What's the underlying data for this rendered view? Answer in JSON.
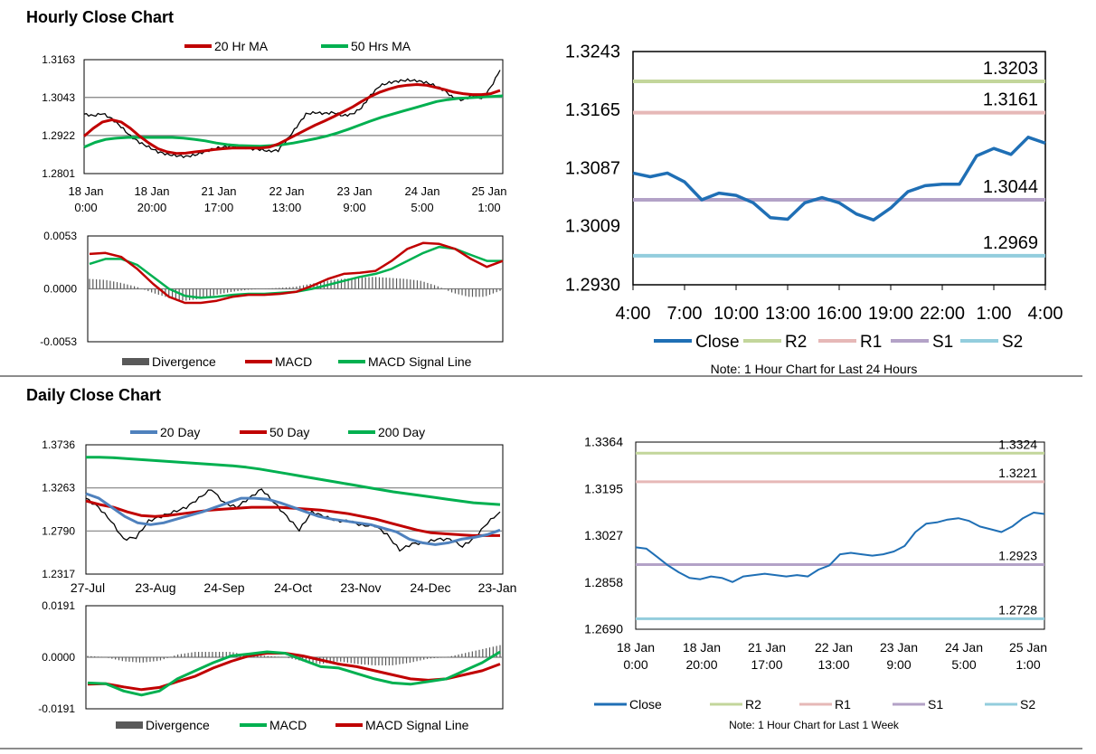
{
  "sections": {
    "hourly_title": "Hourly Close Chart",
    "daily_title": "Daily Close Chart"
  },
  "colors": {
    "ma20hr": "#c00000",
    "ma50hr": "#00b050",
    "d20": "#4f81bd",
    "d50": "#c00000",
    "d200": "#00b050",
    "close": "#1f6fb5",
    "r2": "#c3d69b",
    "r1": "#e6b8b7",
    "s1": "#b3a2c7",
    "s2": "#93cddd",
    "divergence": "#595959",
    "macd_hourly": "#c00000",
    "signal_hourly": "#00b050",
    "macd_daily": "#00b050",
    "signal_daily": "#c00000",
    "price": "#000000"
  },
  "chart_data": [
    {
      "id": "hourly_price",
      "type": "line",
      "title": "Hourly Close Chart",
      "legend": [
        "20 Hr MA",
        "50 Hrs MA"
      ],
      "y_ticks": [
        "1.3163",
        "1.3043",
        "1.2922",
        "1.2801"
      ],
      "ylim": [
        1.2801,
        1.3163
      ],
      "x_ticks": [
        [
          "18 Jan",
          "0:00"
        ],
        [
          "18 Jan",
          "20:00"
        ],
        [
          "21 Jan",
          "17:00"
        ],
        [
          "22 Jan",
          "13:00"
        ],
        [
          "23 Jan",
          "9:00"
        ],
        [
          "24 Jan",
          "5:00"
        ],
        [
          "25 Jan",
          "1:00"
        ]
      ],
      "series": [
        {
          "name": "Price",
          "values": [
            1.299,
            1.2985,
            1.2992,
            1.2975,
            1.295,
            1.292,
            1.29,
            1.2885,
            1.287,
            1.2862,
            1.2858,
            1.2855,
            1.286,
            1.287,
            1.288,
            1.2885,
            1.2888,
            1.2886,
            1.288,
            1.2878,
            1.2872,
            1.2875,
            1.291,
            1.295,
            1.299,
            1.2995,
            1.2992,
            1.2995,
            1.2985,
            1.299,
            1.301,
            1.305,
            1.308,
            1.309,
            1.3095,
            1.3098,
            1.3096,
            1.309,
            1.308,
            1.3065,
            1.304,
            1.3035,
            1.305,
            1.304,
            1.3075,
            1.313
          ]
        },
        {
          "name": "20 Hr MA",
          "values": [
            1.292,
            1.2945,
            1.2965,
            1.2972,
            1.2965,
            1.2945,
            1.292,
            1.2898,
            1.288,
            1.287,
            1.2865,
            1.2866,
            1.287,
            1.2873,
            1.2877,
            1.288,
            1.2882,
            1.2882,
            1.2882,
            1.2882,
            1.2885,
            1.2895,
            1.291,
            1.2925,
            1.294,
            1.2955,
            1.2968,
            1.2982,
            1.2997,
            1.3012,
            1.303,
            1.3046,
            1.306,
            1.307,
            1.3078,
            1.3082,
            1.3084,
            1.3082,
            1.3075,
            1.3068,
            1.306,
            1.3055,
            1.3052,
            1.3052,
            1.3055,
            1.3065
          ]
        },
        {
          "name": "50 Hrs MA",
          "values": [
            1.2885,
            1.29,
            1.291,
            1.2914,
            1.2916,
            1.2916,
            1.2916,
            1.2916,
            1.2916,
            1.2914,
            1.291,
            1.2905,
            1.2898,
            1.2893,
            1.289,
            1.2889,
            1.2888,
            1.289,
            1.2893,
            1.2898,
            1.2905,
            1.2912,
            1.292,
            1.293,
            1.2942,
            1.2955,
            1.2968,
            1.298,
            1.299,
            1.3,
            1.301,
            1.302,
            1.303,
            1.3036,
            1.304,
            1.3042,
            1.3044,
            1.3046,
            1.3048
          ]
        }
      ]
    },
    {
      "id": "hourly_macd",
      "type": "line",
      "y_ticks": [
        "0.0053",
        "0.0000",
        "-0.0053"
      ],
      "ylim": [
        -0.0053,
        0.0053
      ],
      "legend": [
        "Divergence",
        "MACD",
        "MACD Signal Line"
      ],
      "series": [
        {
          "name": "MACD",
          "values": [
            0.0035,
            0.0036,
            0.0032,
            0.002,
            0.0005,
            -0.0008,
            -0.0014,
            -0.0014,
            -0.0012,
            -0.0008,
            -0.0006,
            -0.0006,
            -0.0005,
            -0.0003,
            0.0003,
            0.001,
            0.0015,
            0.0016,
            0.0018,
            0.0028,
            0.004,
            0.0046,
            0.0045,
            0.004,
            0.003,
            0.0022,
            0.0028
          ]
        },
        {
          "name": "MACD Signal Line",
          "values": [
            0.0025,
            0.003,
            0.003,
            0.0024,
            0.0012,
            0.0,
            -0.0007,
            -0.0009,
            -0.0008,
            -0.0006,
            -0.0005,
            -0.0005,
            -0.0004,
            -0.0003,
            0.0,
            0.0004,
            0.0008,
            0.0012,
            0.0015,
            0.002,
            0.0028,
            0.0036,
            0.0042,
            0.004,
            0.0034,
            0.0028,
            0.0028
          ]
        },
        {
          "name": "Divergence",
          "values": [
            0.001,
            0.0009,
            0.0006,
            0.0002,
            -0.0004,
            -0.0009,
            -0.0012,
            -0.001,
            -0.0006,
            -0.0003,
            -0.0001,
            0.0,
            0.0001,
            0.0002,
            0.0005,
            0.0008,
            0.001,
            0.0011,
            0.0012,
            0.0011,
            0.001,
            0.0008,
            0.0003,
            -0.0004,
            -0.0008,
            -0.0008,
            -0.0002
          ]
        }
      ]
    },
    {
      "id": "hourly_24h",
      "type": "line",
      "note": "Note: 1 Hour Chart for Last 24 Hours",
      "y_ticks": [
        "1.3243",
        "1.3165",
        "1.3087",
        "1.3009",
        "1.2930"
      ],
      "ylim": [
        1.293,
        1.3243
      ],
      "x_ticks": [
        "4:00",
        "7:00",
        "10:00",
        "13:00",
        "16:00",
        "19:00",
        "22:00",
        "1:00",
        "4:00"
      ],
      "legend": [
        "Close",
        "R2",
        "R1",
        "S1",
        "S2"
      ],
      "levels": [
        {
          "name": "R2",
          "value": 1.3203,
          "label": "1.3203"
        },
        {
          "name": "R1",
          "value": 1.3161,
          "label": "1.3161"
        },
        {
          "name": "S1",
          "value": 1.3044,
          "label": "1.3044"
        },
        {
          "name": "S2",
          "value": 1.2969,
          "label": "1.2969"
        }
      ],
      "series": [
        {
          "name": "Close",
          "values": [
            1.308,
            1.3075,
            1.308,
            1.3068,
            1.3044,
            1.3053,
            1.305,
            1.304,
            1.302,
            1.3018,
            1.304,
            1.3047,
            1.304,
            1.3025,
            1.3017,
            1.3033,
            1.3055,
            1.3063,
            1.3065,
            1.3065,
            1.3103,
            1.3113,
            1.3105,
            1.3128,
            1.312
          ]
        }
      ]
    },
    {
      "id": "daily_price",
      "type": "line",
      "title": "Daily Close Chart",
      "legend": [
        "20 Day",
        "50 Day",
        "200 Day"
      ],
      "y_ticks": [
        "1.3736",
        "1.3263",
        "1.2790",
        "1.2317"
      ],
      "ylim": [
        1.2317,
        1.3736
      ],
      "x_ticks": [
        "27-Jul",
        "23-Aug",
        "24-Sep",
        "24-Oct",
        "23-Nov",
        "24-Dec",
        "23-Jan"
      ],
      "series": [
        {
          "name": "Price",
          "values": [
            1.315,
            1.305,
            1.29,
            1.27,
            1.272,
            1.29,
            1.295,
            1.3,
            1.305,
            1.315,
            1.325,
            1.31,
            1.305,
            1.315,
            1.325,
            1.31,
            1.295,
            1.28,
            1.3,
            1.295,
            1.29,
            1.29,
            1.285,
            1.285,
            1.275,
            1.258,
            1.265,
            1.266,
            1.27,
            1.27,
            1.262,
            1.272,
            1.288,
            1.3
          ]
        },
        {
          "name": "20 Day",
          "values": [
            1.32,
            1.315,
            1.305,
            1.295,
            1.288,
            1.286,
            1.288,
            1.292,
            1.296,
            1.3,
            1.305,
            1.31,
            1.315,
            1.315,
            1.314,
            1.31,
            1.305,
            1.3,
            1.295,
            1.292,
            1.29,
            1.288,
            1.286,
            1.282,
            1.278,
            1.27,
            1.266,
            1.264,
            1.266,
            1.27,
            1.272,
            1.275,
            1.28
          ]
        },
        {
          "name": "50 Day",
          "values": [
            1.312,
            1.308,
            1.305,
            1.3,
            1.296,
            1.295,
            1.296,
            1.298,
            1.3,
            1.302,
            1.303,
            1.304,
            1.305,
            1.305,
            1.305,
            1.304,
            1.303,
            1.302,
            1.3,
            1.298,
            1.295,
            1.292,
            1.288,
            1.284,
            1.28,
            1.277,
            1.276,
            1.275,
            1.274,
            1.274,
            1.274
          ]
        },
        {
          "name": "200 Day",
          "values": [
            1.36,
            1.36,
            1.3595,
            1.3585,
            1.3575,
            1.3565,
            1.3555,
            1.3545,
            1.3535,
            1.3525,
            1.3515,
            1.3505,
            1.349,
            1.347,
            1.3445,
            1.342,
            1.3395,
            1.337,
            1.3345,
            1.332,
            1.3295,
            1.327,
            1.3245,
            1.322,
            1.32,
            1.318,
            1.316,
            1.314,
            1.312,
            1.31,
            1.309,
            1.308
          ]
        }
      ]
    },
    {
      "id": "daily_macd",
      "type": "line",
      "y_ticks": [
        "0.0191",
        "0.0000",
        "-0.0191"
      ],
      "ylim": [
        -0.0191,
        0.0191
      ],
      "legend": [
        "Divergence",
        "MACD",
        "MACD Signal Line"
      ],
      "series": [
        {
          "name": "MACD",
          "values": [
            -0.0095,
            -0.0098,
            -0.0125,
            -0.014,
            -0.0125,
            -0.008,
            -0.005,
            -0.002,
            0.0005,
            0.0012,
            0.002,
            0.0015,
            -0.001,
            -0.0035,
            -0.004,
            -0.006,
            -0.008,
            -0.0095,
            -0.01,
            -0.009,
            -0.008,
            -0.005,
            -0.002,
            0.002
          ]
        },
        {
          "name": "MACD Signal Line",
          "values": [
            -0.01,
            -0.0098,
            -0.011,
            -0.012,
            -0.0112,
            -0.009,
            -0.007,
            -0.004,
            -0.0015,
            0.0005,
            0.0015,
            0.0015,
            0.0005,
            -0.001,
            -0.0025,
            -0.0035,
            -0.005,
            -0.0065,
            -0.008,
            -0.0085,
            -0.008,
            -0.0065,
            -0.005,
            -0.0025
          ]
        },
        {
          "name": "Divergence",
          "values": [
            0.0005,
            0.0,
            -0.0015,
            -0.002,
            -0.0013,
            0.001,
            0.002,
            0.002,
            0.002,
            0.0007,
            0.0005,
            0.0,
            -0.0015,
            -0.0025,
            -0.0015,
            -0.0025,
            -0.003,
            -0.003,
            -0.002,
            -0.0005,
            0.0,
            0.0015,
            0.003,
            0.0045
          ]
        }
      ]
    },
    {
      "id": "hourly_week",
      "type": "line",
      "note": "Note: 1 Hour Chart for Last 1 Week",
      "y_ticks": [
        "1.3364",
        "1.3195",
        "1.3027",
        "1.2858",
        "1.2690"
      ],
      "ylim": [
        1.269,
        1.3364
      ],
      "x_ticks": [
        [
          "18 Jan",
          "0:00"
        ],
        [
          "18 Jan",
          "20:00"
        ],
        [
          "21 Jan",
          "17:00"
        ],
        [
          "22 Jan",
          "13:00"
        ],
        [
          "23 Jan",
          "9:00"
        ],
        [
          "24 Jan",
          "5:00"
        ],
        [
          "25 Jan",
          "1:00"
        ]
      ],
      "legend": [
        "Close",
        "R2",
        "R1",
        "S1",
        "S2"
      ],
      "levels": [
        {
          "name": "R2",
          "value": 1.3324,
          "label": "1.3324"
        },
        {
          "name": "R1",
          "value": 1.3221,
          "label": "1.3221"
        },
        {
          "name": "S1",
          "value": 1.2923,
          "label": "1.2923"
        },
        {
          "name": "S2",
          "value": 1.2728,
          "label": "1.2728"
        }
      ],
      "series": [
        {
          "name": "Close",
          "values": [
            1.2985,
            1.298,
            1.295,
            1.292,
            1.2895,
            1.2875,
            1.287,
            1.288,
            1.2875,
            1.286,
            1.288,
            1.2885,
            1.289,
            1.2885,
            1.288,
            1.2885,
            1.288,
            1.2905,
            1.292,
            1.296,
            1.2965,
            1.296,
            1.2955,
            1.296,
            1.297,
            1.299,
            1.304,
            1.307,
            1.3075,
            1.3085,
            1.309,
            1.308,
            1.306,
            1.305,
            1.304,
            1.306,
            1.309,
            1.311,
            1.3105
          ]
        }
      ]
    }
  ]
}
